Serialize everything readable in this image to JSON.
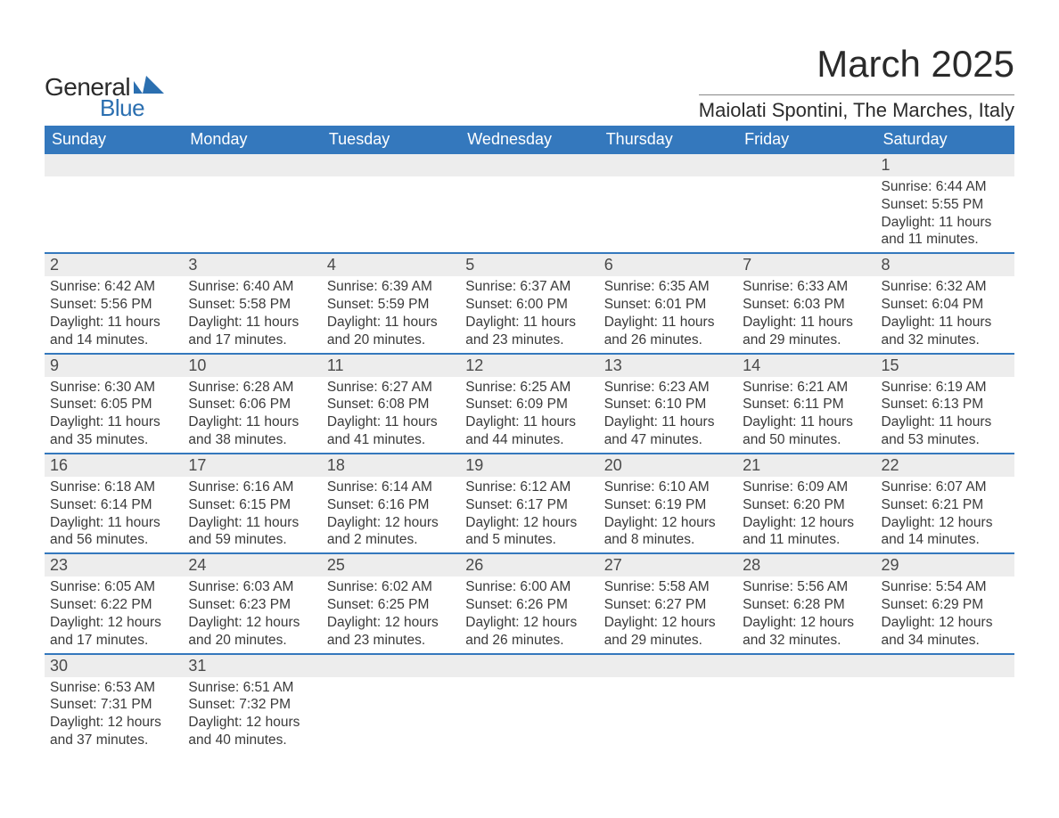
{
  "logo": {
    "text_general": "General",
    "text_blue": "Blue",
    "shape_color": "#2b6fb0"
  },
  "title": "March 2025",
  "location": "Maiolati Spontini, The Marches, Italy",
  "colors": {
    "header_bg": "#3478bd",
    "header_fg": "#ffffff",
    "daynum_bg": "#ededed",
    "row_divider": "#3478bd",
    "body_bg": "#ffffff",
    "text": "#3a3a3a"
  },
  "day_labels": [
    "Sunday",
    "Monday",
    "Tuesday",
    "Wednesday",
    "Thursday",
    "Friday",
    "Saturday"
  ],
  "weeks": [
    [
      null,
      null,
      null,
      null,
      null,
      null,
      {
        "n": "1",
        "sunrise": "6:44 AM",
        "sunset": "5:55 PM",
        "daylight": "11 hours and 11 minutes."
      }
    ],
    [
      {
        "n": "2",
        "sunrise": "6:42 AM",
        "sunset": "5:56 PM",
        "daylight": "11 hours and 14 minutes."
      },
      {
        "n": "3",
        "sunrise": "6:40 AM",
        "sunset": "5:58 PM",
        "daylight": "11 hours and 17 minutes."
      },
      {
        "n": "4",
        "sunrise": "6:39 AM",
        "sunset": "5:59 PM",
        "daylight": "11 hours and 20 minutes."
      },
      {
        "n": "5",
        "sunrise": "6:37 AM",
        "sunset": "6:00 PM",
        "daylight": "11 hours and 23 minutes."
      },
      {
        "n": "6",
        "sunrise": "6:35 AM",
        "sunset": "6:01 PM",
        "daylight": "11 hours and 26 minutes."
      },
      {
        "n": "7",
        "sunrise": "6:33 AM",
        "sunset": "6:03 PM",
        "daylight": "11 hours and 29 minutes."
      },
      {
        "n": "8",
        "sunrise": "6:32 AM",
        "sunset": "6:04 PM",
        "daylight": "11 hours and 32 minutes."
      }
    ],
    [
      {
        "n": "9",
        "sunrise": "6:30 AM",
        "sunset": "6:05 PM",
        "daylight": "11 hours and 35 minutes."
      },
      {
        "n": "10",
        "sunrise": "6:28 AM",
        "sunset": "6:06 PM",
        "daylight": "11 hours and 38 minutes."
      },
      {
        "n": "11",
        "sunrise": "6:27 AM",
        "sunset": "6:08 PM",
        "daylight": "11 hours and 41 minutes."
      },
      {
        "n": "12",
        "sunrise": "6:25 AM",
        "sunset": "6:09 PM",
        "daylight": "11 hours and 44 minutes."
      },
      {
        "n": "13",
        "sunrise": "6:23 AM",
        "sunset": "6:10 PM",
        "daylight": "11 hours and 47 minutes."
      },
      {
        "n": "14",
        "sunrise": "6:21 AM",
        "sunset": "6:11 PM",
        "daylight": "11 hours and 50 minutes."
      },
      {
        "n": "15",
        "sunrise": "6:19 AM",
        "sunset": "6:13 PM",
        "daylight": "11 hours and 53 minutes."
      }
    ],
    [
      {
        "n": "16",
        "sunrise": "6:18 AM",
        "sunset": "6:14 PM",
        "daylight": "11 hours and 56 minutes."
      },
      {
        "n": "17",
        "sunrise": "6:16 AM",
        "sunset": "6:15 PM",
        "daylight": "11 hours and 59 minutes."
      },
      {
        "n": "18",
        "sunrise": "6:14 AM",
        "sunset": "6:16 PM",
        "daylight": "12 hours and 2 minutes."
      },
      {
        "n": "19",
        "sunrise": "6:12 AM",
        "sunset": "6:17 PM",
        "daylight": "12 hours and 5 minutes."
      },
      {
        "n": "20",
        "sunrise": "6:10 AM",
        "sunset": "6:19 PM",
        "daylight": "12 hours and 8 minutes."
      },
      {
        "n": "21",
        "sunrise": "6:09 AM",
        "sunset": "6:20 PM",
        "daylight": "12 hours and 11 minutes."
      },
      {
        "n": "22",
        "sunrise": "6:07 AM",
        "sunset": "6:21 PM",
        "daylight": "12 hours and 14 minutes."
      }
    ],
    [
      {
        "n": "23",
        "sunrise": "6:05 AM",
        "sunset": "6:22 PM",
        "daylight": "12 hours and 17 minutes."
      },
      {
        "n": "24",
        "sunrise": "6:03 AM",
        "sunset": "6:23 PM",
        "daylight": "12 hours and 20 minutes."
      },
      {
        "n": "25",
        "sunrise": "6:02 AM",
        "sunset": "6:25 PM",
        "daylight": "12 hours and 23 minutes."
      },
      {
        "n": "26",
        "sunrise": "6:00 AM",
        "sunset": "6:26 PM",
        "daylight": "12 hours and 26 minutes."
      },
      {
        "n": "27",
        "sunrise": "5:58 AM",
        "sunset": "6:27 PM",
        "daylight": "12 hours and 29 minutes."
      },
      {
        "n": "28",
        "sunrise": "5:56 AM",
        "sunset": "6:28 PM",
        "daylight": "12 hours and 32 minutes."
      },
      {
        "n": "29",
        "sunrise": "5:54 AM",
        "sunset": "6:29 PM",
        "daylight": "12 hours and 34 minutes."
      }
    ],
    [
      {
        "n": "30",
        "sunrise": "6:53 AM",
        "sunset": "7:31 PM",
        "daylight": "12 hours and 37 minutes."
      },
      {
        "n": "31",
        "sunrise": "6:51 AM",
        "sunset": "7:32 PM",
        "daylight": "12 hours and 40 minutes."
      },
      null,
      null,
      null,
      null,
      null
    ]
  ],
  "field_labels": {
    "sunrise": "Sunrise: ",
    "sunset": "Sunset: ",
    "daylight": "Daylight: "
  }
}
